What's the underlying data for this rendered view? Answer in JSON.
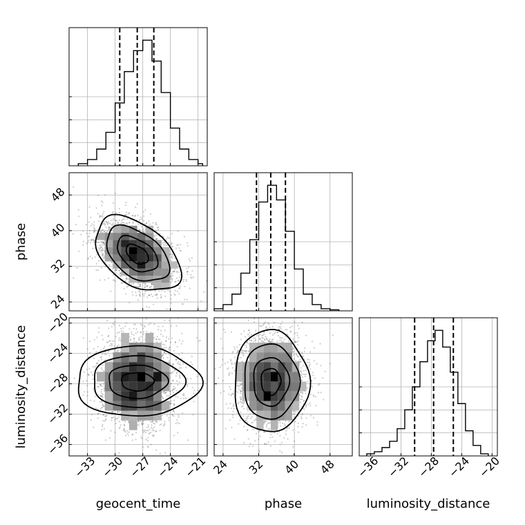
{
  "chart_data": {
    "type": "corner",
    "parameters": [
      "geocent_time",
      "phase",
      "luminosity_distance"
    ],
    "grid": true,
    "quantile_lines": "dashed",
    "diagonal_histograms": [
      {
        "parameter": "geocent_time",
        "xlim": [
          -35.0,
          -20.0
        ],
        "xticks": [
          -33,
          -30,
          -27,
          -24,
          -21
        ],
        "bin_edges": [
          -34.0,
          -33.0,
          -32.0,
          -31.0,
          -30.0,
          -29.0,
          -28.0,
          -27.0,
          -26.0,
          -25.0,
          -24.0,
          -23.0,
          -22.0,
          -21.0,
          -20.5
        ],
        "counts": [
          0.01,
          0.03,
          0.08,
          0.16,
          0.3,
          0.45,
          0.55,
          0.6,
          0.5,
          0.35,
          0.18,
          0.08,
          0.03,
          0.01
        ],
        "quantiles": [
          -29.5,
          -27.6,
          -25.8
        ]
      },
      {
        "parameter": "phase",
        "xlim": [
          22.0,
          53.0
        ],
        "xticks": [
          24,
          32,
          40,
          48
        ],
        "bin_edges": [
          22.0,
          24.0,
          26.0,
          28.0,
          30.0,
          32.0,
          34.0,
          36.0,
          38.0,
          40.0,
          42.0,
          44.0,
          46.0,
          48.0,
          50.0
        ],
        "counts": [
          0.01,
          0.03,
          0.08,
          0.18,
          0.34,
          0.52,
          0.6,
          0.53,
          0.38,
          0.2,
          0.08,
          0.03,
          0.01,
          0.005
        ],
        "quantiles": [
          31.5,
          34.7,
          38.0
        ]
      },
      {
        "parameter": "luminosity_distance",
        "xlim": [
          -37.5,
          -19.3
        ],
        "xticks": [
          -36,
          -32,
          -28,
          -24,
          -20
        ],
        "bin_edges": [
          -36.5,
          -35.5,
          -34.5,
          -33.5,
          -32.5,
          -31.5,
          -30.5,
          -29.5,
          -28.5,
          -27.5,
          -26.5,
          -25.5,
          -24.5,
          -23.5,
          -22.5,
          -21.5,
          -20.5
        ],
        "counts": [
          0.01,
          0.02,
          0.04,
          0.07,
          0.13,
          0.22,
          0.33,
          0.45,
          0.55,
          0.6,
          0.52,
          0.4,
          0.25,
          0.12,
          0.05,
          0.01
        ],
        "quantiles": [
          -30.2,
          -27.7,
          -25.1
        ]
      }
    ],
    "joint_panels": [
      {
        "x": "geocent_time",
        "y": "phase",
        "mean": [
          -27.6,
          34.7
        ],
        "sd": [
          2.2,
          4.0
        ],
        "correlation": -0.45,
        "ylim": [
          22.0,
          53.0
        ],
        "yticks": [
          24,
          32,
          40,
          48
        ]
      },
      {
        "x": "geocent_time",
        "y": "luminosity_distance",
        "mean": [
          -27.6,
          -27.7
        ],
        "sd": [
          2.2,
          3.2
        ],
        "correlation": 0.0,
        "ylim": [
          -37.5,
          -19.3
        ],
        "yticks": [
          -36,
          -32,
          -28,
          -24,
          -20
        ]
      },
      {
        "x": "phase",
        "y": "luminosity_distance",
        "mean": [
          34.7,
          -27.7
        ],
        "sd": [
          4.0,
          3.2
        ],
        "correlation": 0.0,
        "ylim": [
          -37.5,
          -19.3
        ],
        "yticks": [
          -36,
          -32,
          -28,
          -24,
          -20
        ]
      }
    ]
  }
}
